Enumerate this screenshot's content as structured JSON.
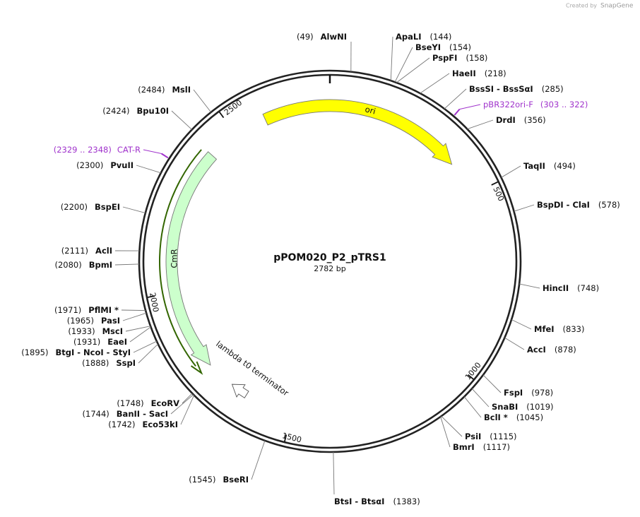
{
  "header": {
    "credit": "Created by",
    "brand": "SnapGene"
  },
  "map": {
    "name": "pPOM020_P2_pTRS1",
    "length_label": "2782 bp",
    "length": 2782,
    "ruler_ticks": [
      500,
      1000,
      1500,
      2000,
      2500
    ],
    "features": [
      {
        "name": "ori"
      },
      {
        "name": "CmR"
      },
      {
        "name": "lambda t0 terminator"
      }
    ],
    "primers": [
      {
        "name": "pBR322ori-F",
        "range": "(303 .. 322)",
        "start": 303,
        "end": 322
      },
      {
        "name": "CAT-R",
        "range": "(2329 .. 2348)",
        "start": 2329,
        "end": 2348
      }
    ],
    "sites": [
      {
        "name": "AlwNI",
        "position": 49,
        "label": "(49)"
      },
      {
        "name": "ApaLI",
        "position": 144,
        "label": "(144)"
      },
      {
        "name": "BseYI",
        "position": 154,
        "label": "(154)"
      },
      {
        "name": "PspFI",
        "position": 158,
        "label": "(158)"
      },
      {
        "name": "HaeII",
        "position": 218,
        "label": "(218)"
      },
      {
        "name": "BssSI - BssSαI",
        "position": 285,
        "label": "(285)"
      },
      {
        "name": "DrdI",
        "position": 356,
        "label": "(356)"
      },
      {
        "name": "TaqII",
        "position": 494,
        "label": "(494)"
      },
      {
        "name": "BspDI - ClaI",
        "position": 578,
        "label": "(578)"
      },
      {
        "name": "HincII",
        "position": 748,
        "label": "(748)"
      },
      {
        "name": "MfeI",
        "position": 833,
        "label": "(833)"
      },
      {
        "name": "AccI",
        "position": 878,
        "label": "(878)"
      },
      {
        "name": "FspI",
        "position": 978,
        "label": "(978)"
      },
      {
        "name": "SnaBI",
        "position": 1019,
        "label": "(1019)"
      },
      {
        "name": "BclI *",
        "position": 1045,
        "label": "(1045)"
      },
      {
        "name": "PsiI",
        "position": 1115,
        "label": "(1115)"
      },
      {
        "name": "BmrI",
        "position": 1117,
        "label": "(1117)"
      },
      {
        "name": "BtsI - BtsαI",
        "position": 1383,
        "label": "(1383)"
      },
      {
        "name": "BseRI",
        "position": 1545,
        "label": "(1545)"
      },
      {
        "name": "EcoRV",
        "position": 1748,
        "label": "(1748)"
      },
      {
        "name": "BanII - SacI",
        "position": 1744,
        "label": "(1744)"
      },
      {
        "name": "Eco53kI",
        "position": 1742,
        "label": "(1742)"
      },
      {
        "name": "SspI",
        "position": 1888,
        "label": "(1888)"
      },
      {
        "name": "BtgI - NcoI - StyI",
        "position": 1895,
        "label": "(1895)"
      },
      {
        "name": "EaeI",
        "position": 1931,
        "label": "(1931)"
      },
      {
        "name": "MscI",
        "position": 1933,
        "label": "(1933)"
      },
      {
        "name": "PasI",
        "position": 1965,
        "label": "(1965)"
      },
      {
        "name": "PflMI *",
        "position": 1971,
        "label": "(1971)"
      },
      {
        "name": "BpmI",
        "position": 2080,
        "label": "(2080)"
      },
      {
        "name": "AclI",
        "position": 2111,
        "label": "(2111)"
      },
      {
        "name": "BspEI",
        "position": 2200,
        "label": "(2200)"
      },
      {
        "name": "PvuII",
        "position": 2300,
        "label": "(2300)"
      },
      {
        "name": "Bpu10I",
        "position": 2424,
        "label": "(2424)"
      },
      {
        "name": "MslI",
        "position": 2484,
        "label": "(2484)"
      }
    ]
  }
}
